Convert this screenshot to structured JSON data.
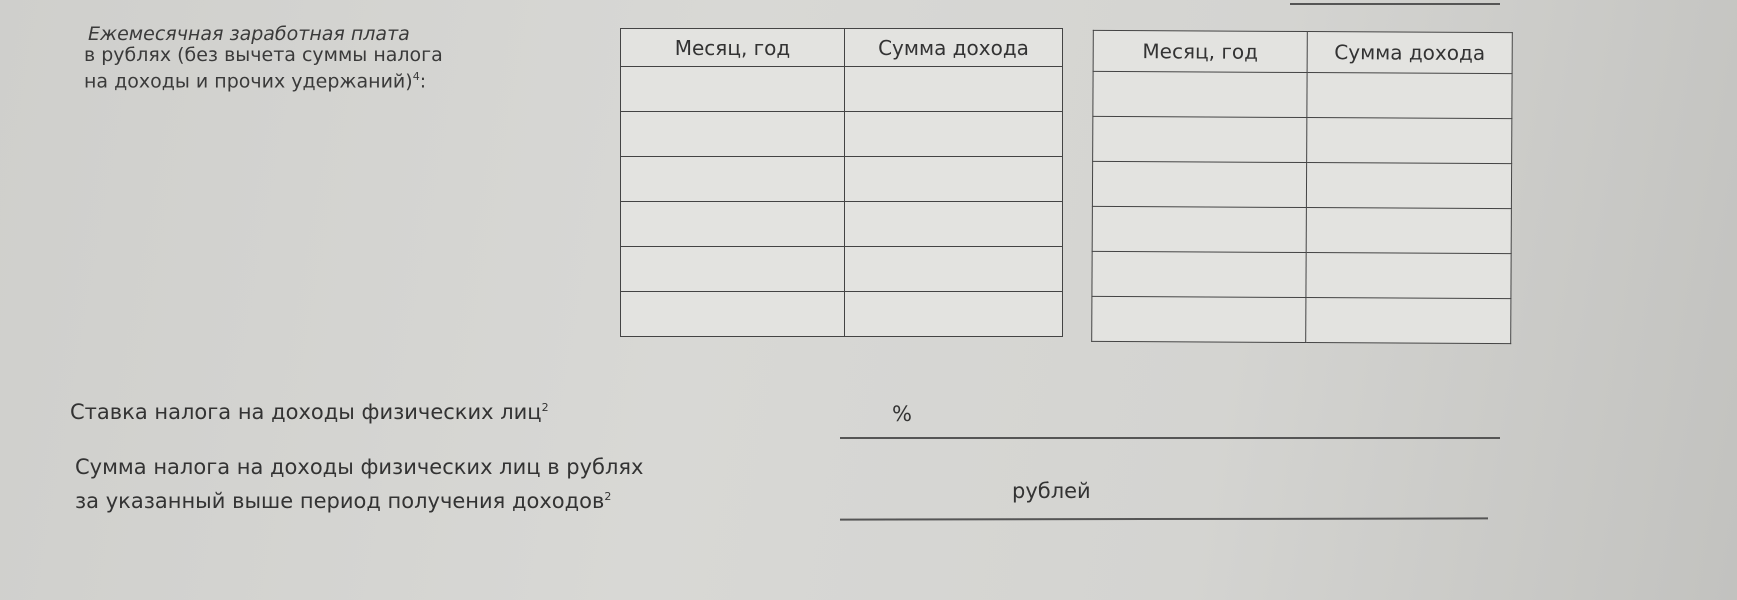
{
  "salary_label": [
    "Ежемесячная заработная плата",
    "в рублях (без вычета суммы налога",
    "на доходы и прочих удержаний)"
  ],
  "salary_label_footnote": "4",
  "salary_label_end": ":",
  "tables": [
    {
      "headers": [
        "Месяц, год",
        "Сумма дохода"
      ],
      "rows": [
        [
          "",
          ""
        ],
        [
          "",
          ""
        ],
        [
          "",
          ""
        ],
        [
          "",
          ""
        ],
        [
          "",
          ""
        ],
        [
          "",
          ""
        ]
      ]
    },
    {
      "headers": [
        "Месяц, год",
        "Сумма дохода"
      ],
      "rows": [
        [
          "",
          ""
        ],
        [
          "",
          ""
        ],
        [
          "",
          ""
        ],
        [
          "",
          ""
        ],
        [
          "",
          ""
        ],
        [
          "",
          ""
        ]
      ]
    }
  ],
  "tax_rate": {
    "label": "Ставка налога на доходы физических лиц",
    "footnote": "2",
    "unit": "%",
    "value": ""
  },
  "tax_sum": {
    "label": [
      "Сумма налога на доходы физических лиц в рублях",
      "за указанный выше период получения доходов"
    ],
    "footnote": "2",
    "unit": "рублей",
    "value": ""
  }
}
